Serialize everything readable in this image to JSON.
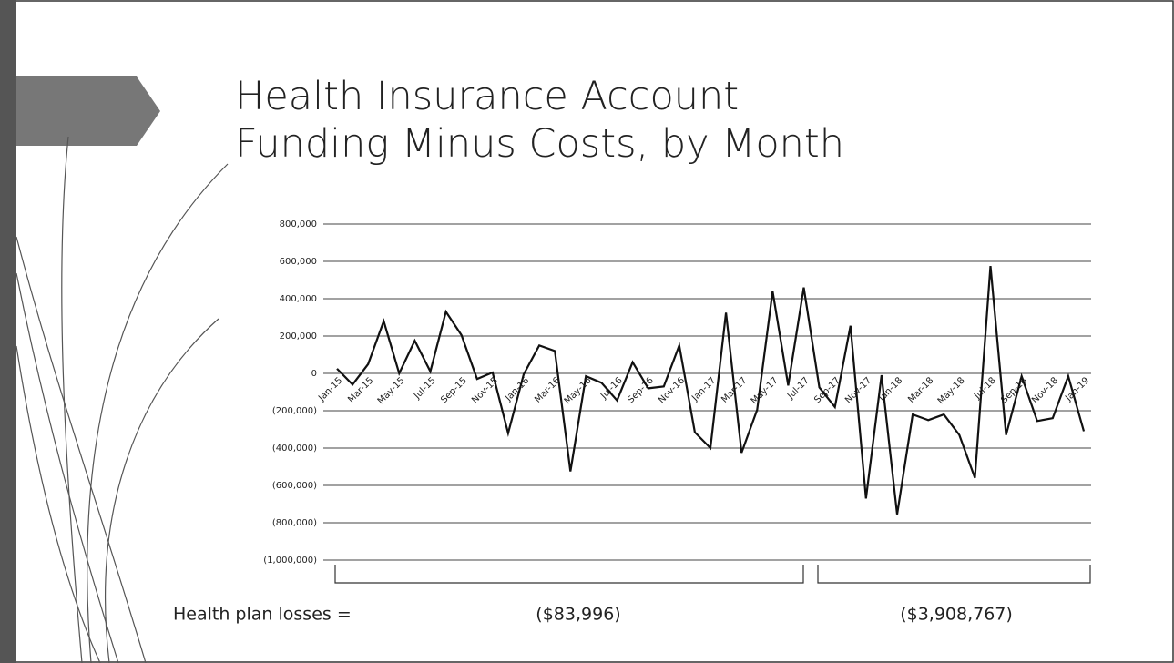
{
  "chart_data": {
    "type": "line",
    "title": "Health Insurance Account\nFunding Minus Costs, by Month",
    "categories": [
      "Jan-15",
      null,
      "Mar-15",
      null,
      "May-15",
      null,
      "Jul-15",
      null,
      "Sep-15",
      null,
      "Nov-15",
      null,
      "Jan-16",
      null,
      "Mar-16",
      null,
      "May-16",
      null,
      "Jul-16",
      null,
      "Sep-16",
      null,
      "Nov-16",
      null,
      "Jan-17",
      null,
      "Mar-17",
      null,
      "May-17",
      null,
      "Jul-17",
      null,
      "Sep-17",
      null,
      "Nov-17",
      null,
      "Jan-18",
      null,
      "Mar-18",
      null,
      "May-18",
      null,
      "Jul-18",
      null,
      "Sep-18",
      null,
      "Nov-18",
      null,
      "Jan-19"
    ],
    "values": [
      25000,
      -60000,
      50000,
      280000,
      0,
      175000,
      10000,
      330000,
      205000,
      -30000,
      5000,
      -320000,
      -5000,
      150000,
      120000,
      -525000,
      -15000,
      -50000,
      -145000,
      60000,
      -80000,
      -70000,
      150000,
      -315000,
      -400000,
      325000,
      -425000,
      -195000,
      440000,
      -65000,
      460000,
      -75000,
      -180000,
      255000,
      -670000,
      -10000,
      -755000,
      -220000,
      -250000,
      -220000,
      -330000,
      -560000,
      575000,
      -330000,
      -15000,
      -255000,
      -240000,
      -15000,
      -310000
    ],
    "color": "#111111",
    "ylim": [
      -1000000,
      800000
    ],
    "yticks": [
      {
        "value": -1000000,
        "label": "(1,000,000)"
      },
      {
        "value": -800000,
        "label": "(800,000)"
      },
      {
        "value": -600000,
        "label": "(600,000)"
      },
      {
        "value": -400000,
        "label": "(400,000)"
      },
      {
        "value": -200000,
        "label": "(200,000)"
      },
      0,
      {
        "value": 200000,
        "label": "200,000"
      },
      {
        "value": 400000,
        "label": "400,000"
      },
      {
        "value": 600000,
        "label": "600,000"
      },
      {
        "value": 800000,
        "label": "800,000"
      }
    ],
    "grid": true,
    "annotations": [
      "Health plan losses =",
      "($83,996)",
      "($3,908,767)"
    ]
  }
}
